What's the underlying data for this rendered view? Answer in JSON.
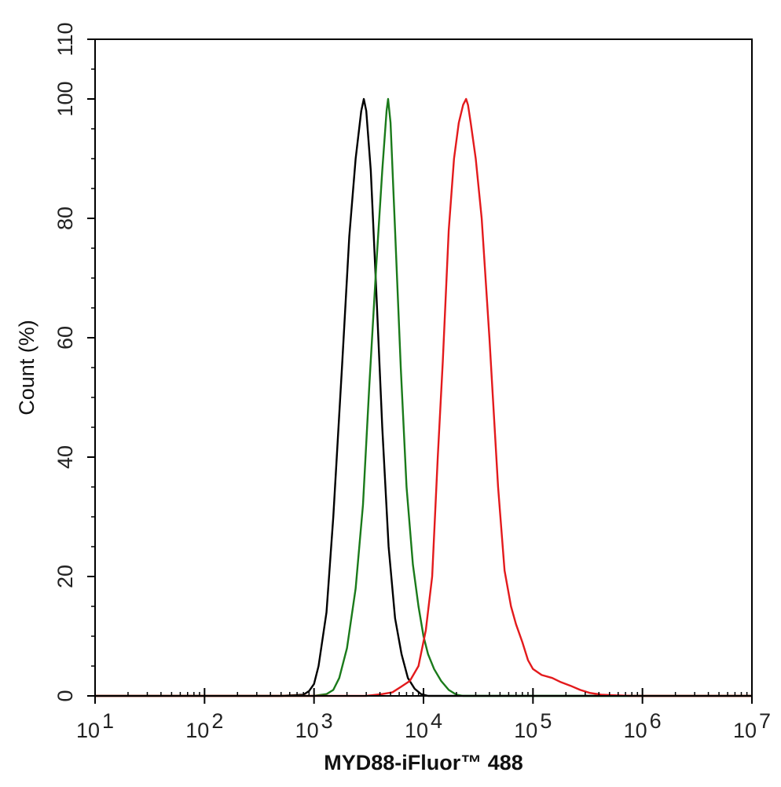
{
  "chart_data": {
    "type": "line",
    "title": "",
    "xlabel": "MYD88-iFluor™ 488",
    "ylabel": "Count  (%)",
    "x_scale": "log",
    "xlim": [
      10,
      10000000
    ],
    "ylim": [
      0,
      110
    ],
    "grid": false,
    "x_tick_labels": [
      {
        "base": "10",
        "exp": "1",
        "value": 10
      },
      {
        "base": "10",
        "exp": "2",
        "value": 100
      },
      {
        "base": "10",
        "exp": "3",
        "value": 1000
      },
      {
        "base": "10",
        "exp": "4",
        "value": 10000
      },
      {
        "base": "10",
        "exp": "5",
        "value": 100000
      },
      {
        "base": "10",
        "exp": "6",
        "value": 1000000
      },
      {
        "base": "10",
        "exp": "7",
        "value": 10000000
      }
    ],
    "y_tick_labels": [
      "0",
      "20",
      "40",
      "60",
      "80",
      "100",
      "110"
    ],
    "y_tick_values": [
      0,
      20,
      40,
      60,
      80,
      100,
      110
    ],
    "series": [
      {
        "color": "#000000",
        "x": [
          10,
          500,
          800,
          900,
          1000,
          1100,
          1300,
          1500,
          1800,
          2100,
          2400,
          2700,
          2850,
          3000,
          3300,
          3700,
          4200,
          4800,
          5500,
          6300,
          7200,
          8300,
          9500,
          11000,
          100000,
          10000000
        ],
        "y": [
          0,
          0,
          0.2,
          0.8,
          2,
          5,
          14,
          30,
          55,
          77,
          90,
          98,
          100,
          98,
          88,
          68,
          45,
          25,
          13,
          7,
          3,
          1.2,
          0.3,
          0,
          0,
          0
        ]
      },
      {
        "color": "#1a7a1a",
        "x": [
          10,
          1000,
          1300,
          1500,
          1700,
          2000,
          2400,
          2800,
          3200,
          3700,
          4200,
          4600,
          4750,
          5000,
          5500,
          6200,
          7000,
          8000,
          9000,
          10000,
          11000,
          12500,
          14500,
          17000,
          20000,
          23000,
          100000,
          10000000
        ],
        "y": [
          0,
          0,
          0.3,
          1,
          3,
          8,
          18,
          32,
          52,
          72,
          88,
          98,
          100,
          96,
          78,
          55,
          35,
          22,
          15,
          10,
          7,
          4.5,
          2.5,
          1,
          0.2,
          0,
          0,
          0
        ]
      },
      {
        "color": "#e31a1c",
        "x": [
          10,
          3000,
          4200,
          5200,
          6200,
          7500,
          9000,
          10500,
          12000,
          13500,
          15000,
          17000,
          19000,
          21000,
          23000,
          24500,
          25500,
          27000,
          30000,
          34000,
          40000,
          48000,
          55000,
          63000,
          70000,
          80000,
          90000,
          100000,
          120000,
          150000,
          180000,
          220000,
          270000,
          330000,
          420000,
          550000,
          800000,
          10000000
        ],
        "y": [
          0,
          0,
          0.3,
          0.6,
          1.5,
          2.5,
          5,
          11,
          20,
          40,
          56,
          78,
          90,
          96,
          99,
          100,
          99,
          96,
          90,
          80,
          60,
          35,
          21,
          15,
          12,
          9,
          6,
          4.5,
          3.5,
          3,
          2.3,
          1.7,
          1,
          0.5,
          0.2,
          0.1,
          0,
          0
        ]
      }
    ]
  }
}
